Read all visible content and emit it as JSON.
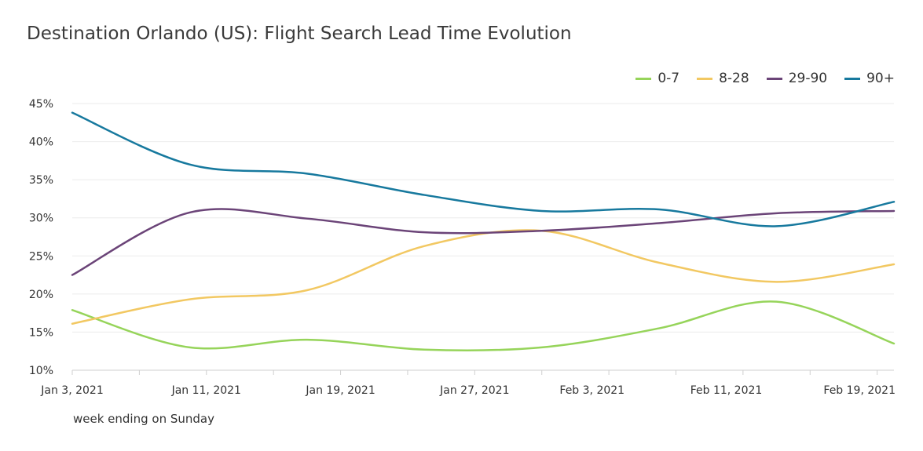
{
  "title": "Destination Orlando (US): Flight Search Lead Time Evolution",
  "xlabel": "week ending on Sunday",
  "chart_data": {
    "type": "line",
    "title": "Destination Orlando (US): Flight Search Lead Time Evolution",
    "xlabel": "week ending on Sunday",
    "ylabel": "",
    "x": [
      "2021-01-03",
      "2021-01-10",
      "2021-01-17",
      "2021-01-24",
      "2021-01-31",
      "2021-02-07",
      "2021-02-14",
      "2021-02-21"
    ],
    "xticks": [
      "Jan 3, 2021",
      "Jan 11, 2021",
      "Jan 19, 2021",
      "Jan 27, 2021",
      "Feb 3, 2021",
      "Feb 11, 2021",
      "Feb 19, 2021"
    ],
    "xtick_dates": [
      "2021-01-03",
      "2021-01-11",
      "2021-01-19",
      "2021-01-27",
      "2021-02-03",
      "2021-02-11",
      "2021-02-19"
    ],
    "yticks": [
      "10%",
      "15%",
      "20%",
      "25%",
      "30%",
      "35%",
      "40%",
      "45%"
    ],
    "ylim": [
      10,
      45
    ],
    "grid": true,
    "legend_position": "top-right",
    "series": [
      {
        "name": "0-7",
        "color": "#96d45a",
        "values": [
          17.9,
          13.0,
          14.0,
          12.7,
          13.0,
          15.5,
          19.0,
          13.5
        ]
      },
      {
        "name": "8-28",
        "color": "#f2c862",
        "values": [
          16.1,
          19.3,
          20.5,
          26.3,
          28.3,
          24.1,
          21.6,
          23.9
        ]
      },
      {
        "name": "29-90",
        "color": "#6b4478",
        "values": [
          22.5,
          30.7,
          29.9,
          28.1,
          28.3,
          29.3,
          30.6,
          30.9
        ]
      },
      {
        "name": "90+",
        "color": "#17799e",
        "values": [
          43.8,
          37.0,
          35.8,
          33.0,
          30.9,
          31.1,
          28.9,
          32.1
        ]
      }
    ]
  }
}
